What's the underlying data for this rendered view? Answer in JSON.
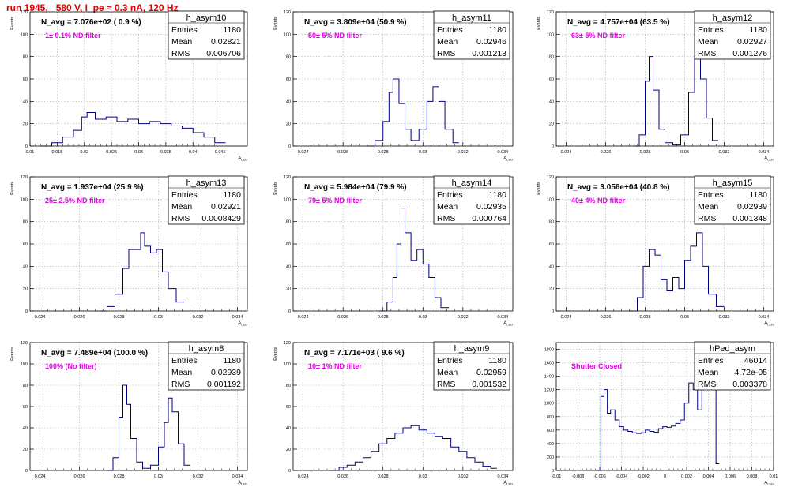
{
  "header": {
    "text": "run 1945,   580 V, I_pe ≈ 0.3 nA, 120 Hz"
  },
  "colors": {
    "hist": "#00007f",
    "label": "#e000e0",
    "header": "#e00000"
  },
  "stats_labels": {
    "entries": "Entries",
    "mean": "Mean",
    "rms": "RMS"
  },
  "chart_data": [
    {
      "id": "h_asym10",
      "type": "histogram",
      "title": "N_avg = 7.076e+02 ( 0.9 %)",
      "annotation": "1± 0.1% ND filter",
      "ylabel": "Events",
      "xlabel": "A_LED",
      "stats": {
        "name": "h_asym10",
        "entries": "1180",
        "mean": "0.02821",
        "rms": "0.006706"
      },
      "xlim": [
        0.01,
        0.05
      ],
      "ylim": [
        0,
        120
      ],
      "xticks": [
        0.01,
        0.015,
        0.02,
        0.025,
        0.03,
        0.035,
        0.04,
        0.045
      ],
      "xtick_labels": [
        "0.01",
        "0.015",
        "0.02",
        "0.025",
        "0.03",
        "0.035",
        "0.04",
        "0.045"
      ],
      "yticks": [
        0,
        20,
        40,
        60,
        80,
        100,
        120
      ],
      "grid": true,
      "x": [
        0.012,
        0.014,
        0.016,
        0.018,
        0.0195,
        0.0205,
        0.022,
        0.024,
        0.026,
        0.028,
        0.03,
        0.032,
        0.034,
        0.036,
        0.038,
        0.04,
        0.042,
        0.044,
        0.046
      ],
      "y": [
        0,
        3,
        8,
        14,
        26,
        30,
        24,
        26,
        22,
        24,
        20,
        22,
        20,
        18,
        16,
        12,
        8,
        3,
        0
      ]
    },
    {
      "id": "h_asym11",
      "type": "histogram",
      "title": "N_avg = 3.809e+04 (50.9 %)",
      "annotation": "50± 5% ND filter",
      "ylabel": "Events",
      "xlabel": "A_LED",
      "stats": {
        "name": "h_asym11",
        "entries": "1180",
        "mean": "0.02946",
        "rms": "0.001213"
      },
      "xlim": [
        0.0235,
        0.0345
      ],
      "ylim": [
        0,
        120
      ],
      "xticks": [
        0.024,
        0.026,
        0.028,
        0.03,
        0.032,
        0.034
      ],
      "xtick_labels": [
        "0.024",
        "0.026",
        "0.028",
        "0.03",
        "0.032",
        "0.034"
      ],
      "yticks": [
        0,
        20,
        40,
        60,
        80,
        100,
        120
      ],
      "grid": true,
      "x": [
        0.0272,
        0.0276,
        0.028,
        0.0283,
        0.0285,
        0.0288,
        0.0291,
        0.0294,
        0.0298,
        0.0302,
        0.0305,
        0.0308,
        0.0311,
        0.0315,
        0.0318
      ],
      "y": [
        0,
        5,
        22,
        48,
        60,
        38,
        15,
        5,
        15,
        40,
        53,
        40,
        15,
        3,
        0
      ]
    },
    {
      "id": "h_asym12",
      "type": "histogram",
      "title": "N_avg = 4.757e+04 (63.5 %)",
      "annotation": "63± 5% ND filter",
      "ylabel": "Events",
      "xlabel": "A_LED",
      "stats": {
        "name": "h_asym12",
        "entries": "1180",
        "mean": "0.02927",
        "rms": "0.001276"
      },
      "xlim": [
        0.0235,
        0.0345
      ],
      "ylim": [
        0,
        120
      ],
      "xticks": [
        0.024,
        0.026,
        0.028,
        0.03,
        0.032,
        0.034
      ],
      "xtick_labels": [
        "0.024",
        "0.026",
        "0.028",
        "0.03",
        "0.032",
        "0.034"
      ],
      "yticks": [
        0,
        20,
        40,
        60,
        80,
        100,
        120
      ],
      "grid": true,
      "x": [
        0.0274,
        0.0277,
        0.028,
        0.0282,
        0.0284,
        0.0287,
        0.029,
        0.0294,
        0.0298,
        0.0302,
        0.0305,
        0.0308,
        0.0311,
        0.0314,
        0.0317
      ],
      "y": [
        0,
        10,
        58,
        80,
        50,
        15,
        3,
        1,
        10,
        48,
        78,
        60,
        25,
        5,
        0
      ]
    },
    {
      "id": "h_asym13",
      "type": "histogram",
      "title": "N_avg = 1.937e+04 (25.9 %)",
      "annotation": "25± 2.5% ND filter",
      "ylabel": "Events",
      "xlabel": "A_LED",
      "stats": {
        "name": "h_asym13",
        "entries": "1180",
        "mean": "0.02921",
        "rms": "0.0008429"
      },
      "xlim": [
        0.0235,
        0.0345
      ],
      "ylim": [
        0,
        120
      ],
      "xticks": [
        0.024,
        0.026,
        0.028,
        0.03,
        0.032,
        0.034
      ],
      "xtick_labels": [
        "0.024",
        "0.026",
        "0.028",
        "0.03",
        "0.032",
        "0.034"
      ],
      "yticks": [
        0,
        20,
        40,
        60,
        80,
        100,
        120
      ],
      "grid": true,
      "x": [
        0.027,
        0.0274,
        0.0278,
        0.0282,
        0.0285,
        0.0288,
        0.0291,
        0.0293,
        0.0296,
        0.0299,
        0.0302,
        0.0305,
        0.0309,
        0.0313
      ],
      "y": [
        0,
        4,
        15,
        38,
        55,
        55,
        70,
        58,
        52,
        55,
        35,
        20,
        8,
        0
      ]
    },
    {
      "id": "h_asym14",
      "type": "histogram",
      "title": "N_avg = 5.984e+04 (79.9 %)",
      "annotation": "79± 5% ND filter",
      "ylabel": "Events",
      "xlabel": "A_LED",
      "stats": {
        "name": "h_asym14",
        "entries": "1180",
        "mean": "0.02935",
        "rms": "0.000764"
      },
      "xlim": [
        0.0235,
        0.0345
      ],
      "ylim": [
        0,
        120
      ],
      "xticks": [
        0.024,
        0.026,
        0.028,
        0.03,
        0.032,
        0.034
      ],
      "xtick_labels": [
        "0.024",
        "0.026",
        "0.028",
        "0.03",
        "0.032",
        "0.034"
      ],
      "yticks": [
        0,
        20,
        40,
        60,
        80,
        100,
        120
      ],
      "grid": true,
      "x": [
        0.0278,
        0.0282,
        0.0285,
        0.0287,
        0.0289,
        0.0291,
        0.0294,
        0.0297,
        0.03,
        0.0303,
        0.0306,
        0.0309,
        0.0313
      ],
      "y": [
        0,
        8,
        30,
        60,
        92,
        70,
        45,
        55,
        42,
        30,
        12,
        3,
        0
      ]
    },
    {
      "id": "h_asym15",
      "type": "histogram",
      "title": "N_avg = 3.056e+04 (40.8 %)",
      "annotation": "40± 4% ND filter",
      "ylabel": "Events",
      "xlabel": "A_LED",
      "stats": {
        "name": "h_asym15",
        "entries": "1180",
        "mean": "0.02939",
        "rms": "0.001348"
      },
      "xlim": [
        0.0235,
        0.0345
      ],
      "ylim": [
        0,
        120
      ],
      "xticks": [
        0.024,
        0.026,
        0.028,
        0.03,
        0.032,
        0.034
      ],
      "xtick_labels": [
        "0.024",
        "0.026",
        "0.028",
        "0.03",
        "0.032",
        "0.034"
      ],
      "yticks": [
        0,
        20,
        40,
        60,
        80,
        100,
        120
      ],
      "grid": true,
      "x": [
        0.0272,
        0.0276,
        0.0279,
        0.0282,
        0.0285,
        0.0288,
        0.0291,
        0.0294,
        0.0297,
        0.03,
        0.0303,
        0.0306,
        0.0309,
        0.0312,
        0.0316,
        0.032
      ],
      "y": [
        0,
        12,
        40,
        55,
        50,
        28,
        18,
        30,
        20,
        45,
        58,
        70,
        40,
        15,
        4,
        0
      ]
    },
    {
      "id": "h_asym8",
      "type": "histogram",
      "title": "N_avg = 7.489e+04 (100.0 %)",
      "annotation": "100% (No filter)",
      "ylabel": "Events",
      "xlabel": "A_LED",
      "stats": {
        "name": "h_asym8",
        "entries": "1180",
        "mean": "0.02939",
        "rms": "0.001192"
      },
      "xlim": [
        0.0235,
        0.0345
      ],
      "ylim": [
        0,
        120
      ],
      "xticks": [
        0.024,
        0.026,
        0.028,
        0.03,
        0.032,
        0.034
      ],
      "xtick_labels": [
        "0.024",
        "0.026",
        "0.028",
        "0.03",
        "0.032",
        "0.034"
      ],
      "yticks": [
        0,
        20,
        40,
        60,
        80,
        100,
        120
      ],
      "grid": true,
      "x": [
        0.0274,
        0.0277,
        0.028,
        0.0282,
        0.0284,
        0.0286,
        0.0289,
        0.0292,
        0.0296,
        0.03,
        0.0303,
        0.0305,
        0.0307,
        0.031,
        0.0313,
        0.0316
      ],
      "y": [
        0,
        12,
        50,
        80,
        62,
        30,
        8,
        2,
        5,
        22,
        45,
        68,
        55,
        25,
        5,
        0
      ]
    },
    {
      "id": "h_asym9",
      "type": "histogram",
      "title": "N_avg = 7.171e+03 ( 9.6 %)",
      "annotation": "10± 1% ND filter",
      "ylabel": "Events",
      "xlabel": "A_LED",
      "stats": {
        "name": "h_asym9",
        "entries": "1180",
        "mean": "0.02959",
        "rms": "0.001532"
      },
      "xlim": [
        0.0235,
        0.0345
      ],
      "ylim": [
        0,
        120
      ],
      "xticks": [
        0.024,
        0.026,
        0.028,
        0.03,
        0.032,
        0.034
      ],
      "xtick_labels": [
        "0.024",
        "0.026",
        "0.028",
        "0.03",
        "0.032",
        "0.034"
      ],
      "yticks": [
        0,
        20,
        40,
        60,
        80,
        100,
        120
      ],
      "grid": true,
      "x": [
        0.0253,
        0.0258,
        0.0262,
        0.0266,
        0.027,
        0.0274,
        0.0278,
        0.0282,
        0.0286,
        0.029,
        0.0294,
        0.0298,
        0.0302,
        0.0306,
        0.031,
        0.0314,
        0.0318,
        0.0322,
        0.0326,
        0.033,
        0.0334,
        0.0337
      ],
      "y": [
        0,
        3,
        5,
        8,
        12,
        18,
        25,
        30,
        35,
        40,
        42,
        38,
        35,
        32,
        30,
        22,
        18,
        12,
        8,
        4,
        2,
        0
      ]
    },
    {
      "id": "hPed_asym",
      "type": "histogram",
      "title": "",
      "annotation": "Shutter Closed",
      "ylabel": "",
      "xlabel": "A_LED",
      "stats": {
        "name": "hPed_asym",
        "entries": "46014",
        "mean": "4.72e-05",
        "rms": "0.003378"
      },
      "xlim": [
        -0.01,
        0.01
      ],
      "ylim": [
        0,
        1900
      ],
      "xticks": [
        -0.01,
        -0.008,
        -0.006,
        -0.004,
        -0.002,
        0,
        0.002,
        0.004,
        0.006,
        0.008,
        0.01
      ],
      "xtick_labels": [
        "-0.01",
        "-0.008",
        "-0.006",
        "-0.004",
        "-0.002",
        "0",
        "0.002",
        "0.004",
        "0.006",
        "0.008",
        "0.01"
      ],
      "yticks": [
        0,
        200,
        400,
        600,
        800,
        1000,
        1200,
        1400,
        1600,
        1800
      ],
      "grid": true,
      "x": [
        -0.0062,
        -0.0059,
        -0.0056,
        -0.0053,
        -0.005,
        -0.0046,
        -0.0042,
        -0.0038,
        -0.0034,
        -0.003,
        -0.0026,
        -0.0022,
        -0.0018,
        -0.0014,
        -0.001,
        -0.0006,
        -0.0002,
        0.0002,
        0.0006,
        0.001,
        0.0014,
        0.0018,
        0.0022,
        0.0026,
        0.003,
        0.0034,
        0.0038,
        0.0041,
        0.0044,
        0.0047,
        0.005
      ],
      "y": [
        0,
        1100,
        1200,
        850,
        900,
        750,
        650,
        600,
        580,
        560,
        550,
        560,
        600,
        580,
        570,
        620,
        650,
        640,
        660,
        700,
        750,
        1000,
        1300,
        1200,
        900,
        1300,
        1500,
        1850,
        1200,
        100,
        0
      ]
    }
  ]
}
